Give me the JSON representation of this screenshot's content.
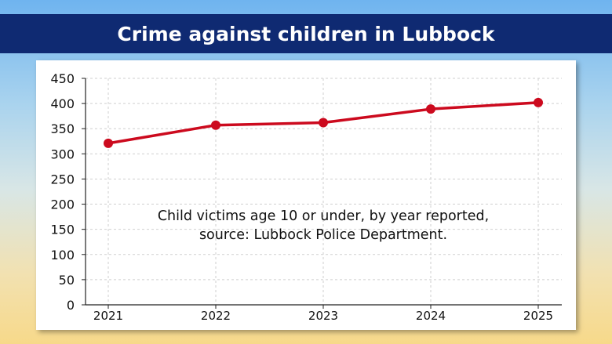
{
  "chart_data": {
    "type": "line",
    "title": "Crime against children in Lubbock",
    "x": [
      "2021",
      "2022",
      "2023",
      "2024",
      "2025"
    ],
    "series": [
      {
        "values": [
          321,
          357,
          362,
          389,
          402
        ]
      }
    ],
    "ylim": [
      0,
      450
    ],
    "yticks": [
      0,
      50,
      100,
      150,
      200,
      250,
      300,
      350,
      400,
      450
    ],
    "grid": true,
    "annotation": [
      "Child victims age 10 or under, by year reported,",
      "source: Lubbock Police Department."
    ],
    "line_color": "#cc0a1e",
    "title_bar_color": "#0f2a72"
  }
}
